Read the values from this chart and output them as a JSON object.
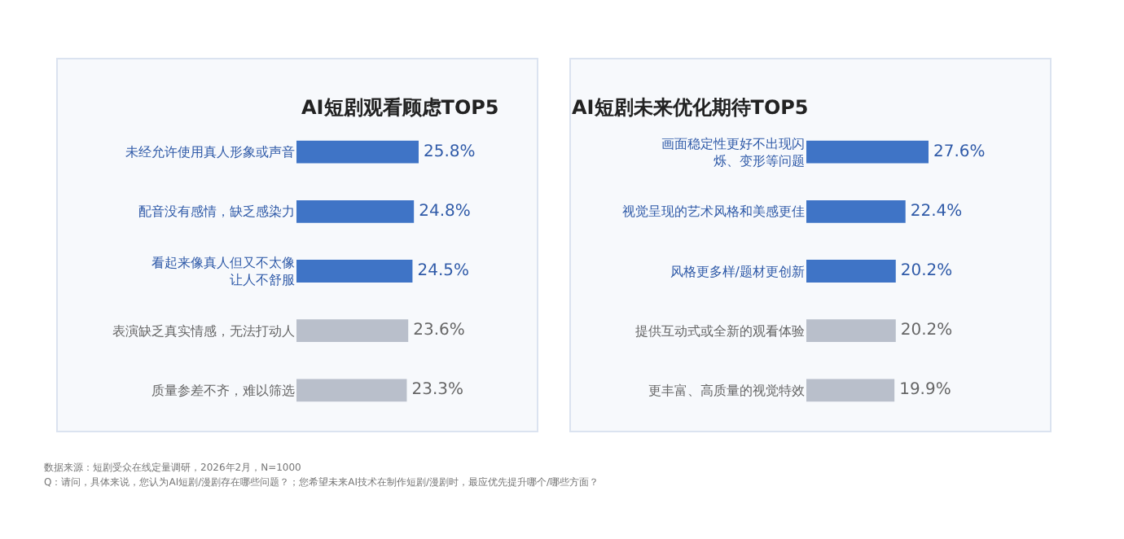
{
  "chart_data": [
    {
      "type": "bar",
      "orientation": "horizontal",
      "title": "AI短剧观看顾虑TOP5",
      "categories": [
        "未经允许使用真人形象或声音",
        "配音没有感情，缺乏感染力",
        "看起来像真人但又不太像让人不舒服",
        "表演缺乏真实情感，无法打动人",
        "质量参差不齐，难以筛选"
      ],
      "values": [
        25.8,
        24.8,
        24.5,
        23.6,
        23.3
      ],
      "value_labels": [
        "25.8%",
        "24.8%",
        "24.5%",
        "23.6%",
        "23.3%"
      ],
      "colors": [
        "#3f74c6",
        "#3f74c6",
        "#3f74c6",
        "#b9bfcb",
        "#b9bfcb"
      ],
      "annotations": [
        "数据来源：短剧受众在线定量调研，2026年2月，N=1000",
        "Q：请问，具体来说，您认为AI短剧/漫剧存在哪些问题？；您希望未来AI技术在制作短剧/漫剧时，最应优先提升哪个/哪些方面？"
      ],
      "grid": false,
      "legend": false
    },
    {
      "type": "bar",
      "orientation": "horizontal",
      "title": "AI短剧未来优化期待TOP5",
      "categories": [
        "画面稳定性更好不出现闪烁、变形等问题",
        "视觉呈现的艺术风格和美感更佳",
        "风格更多样/题材更创新",
        "提供互动式或全新的观看体验",
        "更丰富、高质量的视觉特效"
      ],
      "values": [
        27.6,
        22.4,
        20.2,
        20.2,
        19.9
      ],
      "value_labels": [
        "27.6%",
        "22.4%",
        "20.2%",
        "20.2%",
        "19.9%"
      ],
      "colors": [
        "#3f74c6",
        "#3f74c6",
        "#3f74c6",
        "#b9bfcb",
        "#b9bfcb"
      ],
      "grid": false,
      "legend": false
    }
  ]
}
